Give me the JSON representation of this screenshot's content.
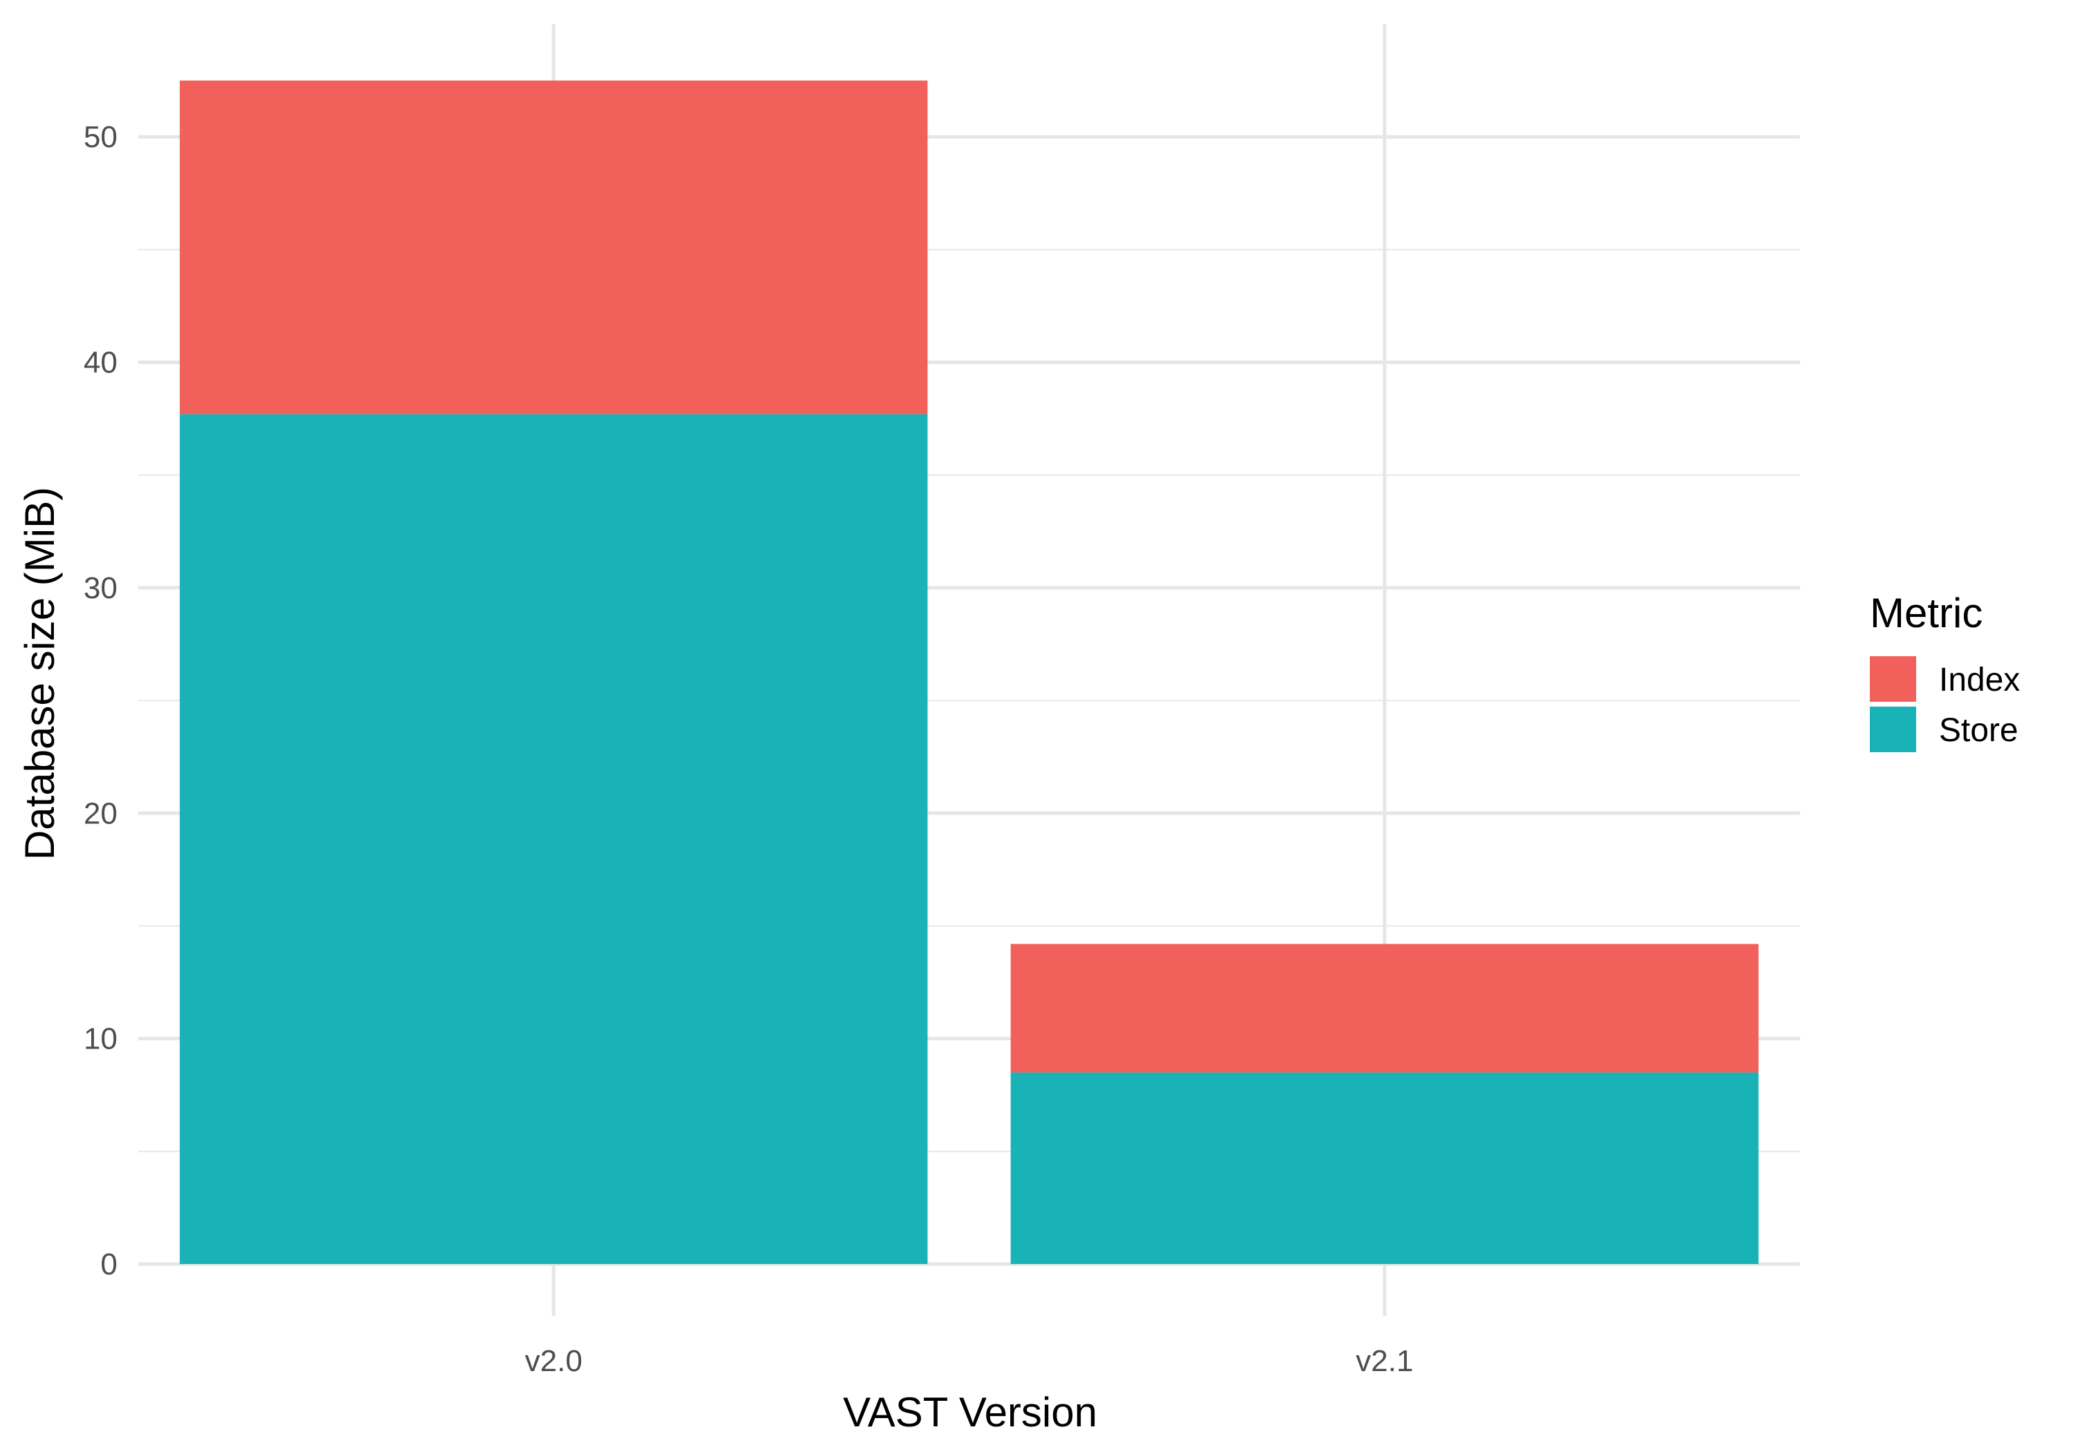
{
  "chart_data": {
    "type": "bar",
    "stacked": true,
    "categories": [
      "v2.0",
      "v2.1"
    ],
    "series": [
      {
        "name": "Store",
        "values": [
          37.7,
          8.5
        ],
        "color": "#19B3B7"
      },
      {
        "name": "Index",
        "values": [
          14.8,
          5.7
        ],
        "color": "#F2605C"
      }
    ],
    "xlabel": "VAST Version",
    "ylabel": "Database size (MiB)",
    "ylim": [
      0,
      55
    ],
    "yticks": [
      0,
      10,
      20,
      30,
      40,
      50
    ],
    "grid": true,
    "legend": {
      "title": "Metric",
      "position": "right",
      "entries": [
        {
          "label": "Index",
          "color": "#F2605C"
        },
        {
          "label": "Store",
          "color": "#19B3B7"
        }
      ]
    }
  }
}
